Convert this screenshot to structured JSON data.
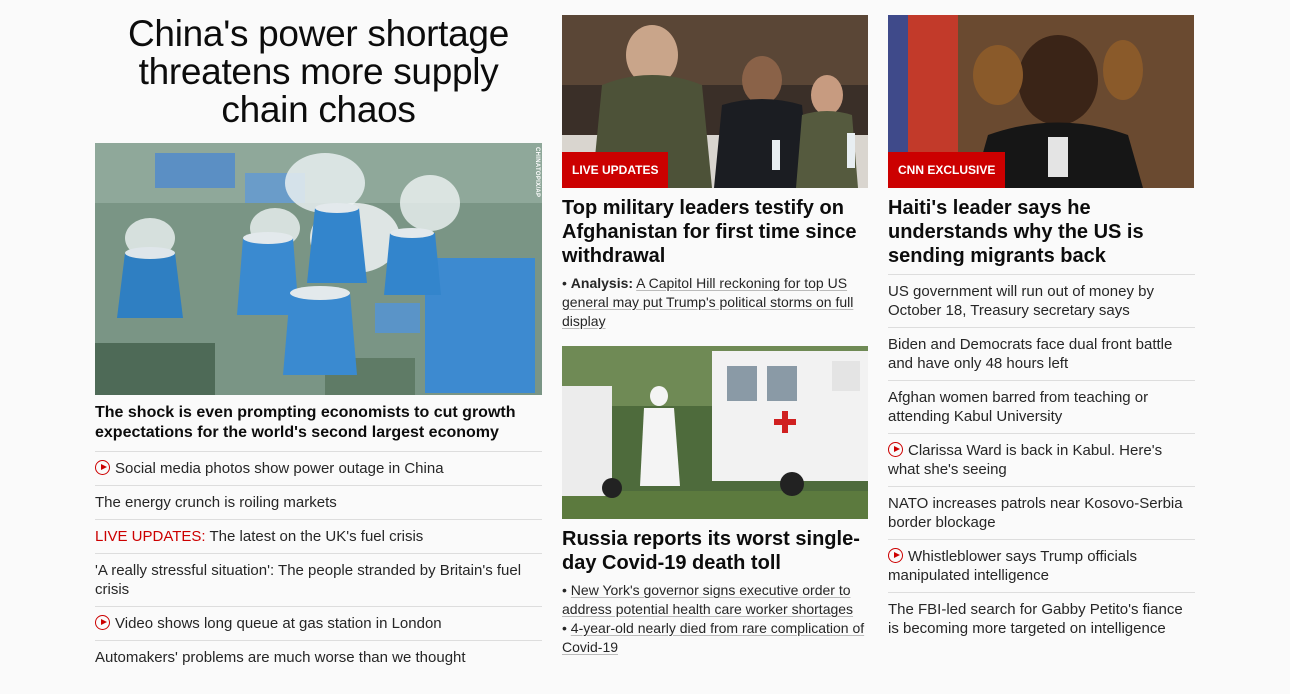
{
  "hero": {
    "title": "China's power shortage threatens more supply chain chaos",
    "image_credit": "CHINATOPIX/AP",
    "lead": "The shock is even prompting economists to cut growth expectations for the world's second largest economy",
    "items": [
      {
        "text": "Social media photos show power outage in China",
        "video": true
      },
      {
        "text": "The energy crunch is roiling markets",
        "video": false
      },
      {
        "prefix": "LIVE UPDATES:",
        "text": "The latest on the UK's fuel crisis",
        "video": false
      },
      {
        "text": "'A really stressful situation': The people stranded by Britain's fuel crisis",
        "video": false
      },
      {
        "text": "Video shows long queue at gas station in London",
        "video": true
      },
      {
        "text": "Automakers' problems are much worse than we thought",
        "video": false
      }
    ]
  },
  "middle": {
    "card1": {
      "badge": "LIVE UPDATES",
      "title": "Top military leaders testify on Afghanistan for first time since withdrawal",
      "sub_label": "Analysis:",
      "sub_text": "A Capitol Hill reckoning for top US general may put Trump's political storms on full display"
    },
    "card2": {
      "title": "Russia reports its worst single-day Covid-19 death toll",
      "sub1": "New York's governor signs executive order to address potential health care worker shortages",
      "sub2": "4-year-old nearly died from rare complication of Covid-19"
    }
  },
  "right": {
    "card": {
      "badge": "CNN EXCLUSIVE",
      "title": "Haiti's leader says he understands why the US is sending migrants back"
    },
    "items": [
      {
        "text": "US government will run out of money by October 18, Treasury secretary says",
        "video": false
      },
      {
        "text": "Biden and Democrats face dual front battle and have only 48 hours left",
        "video": false
      },
      {
        "text": "Afghan women barred from teaching or attending Kabul University",
        "video": false
      },
      {
        "text": "Clarissa Ward is back in Kabul. Here's what she's seeing",
        "video": true
      },
      {
        "text": "NATO increases patrols near Kosovo-Serbia border blockage",
        "video": false
      },
      {
        "text": "Whistleblower says Trump officials manipulated intelligence",
        "video": true
      },
      {
        "text": "The FBI-led search for Gabby Petito's fiance is becoming more targeted on intelligence",
        "video": false
      }
    ]
  },
  "colors": {
    "accent": "#cc0000",
    "text": "#262626",
    "rule": "#dddddd"
  }
}
